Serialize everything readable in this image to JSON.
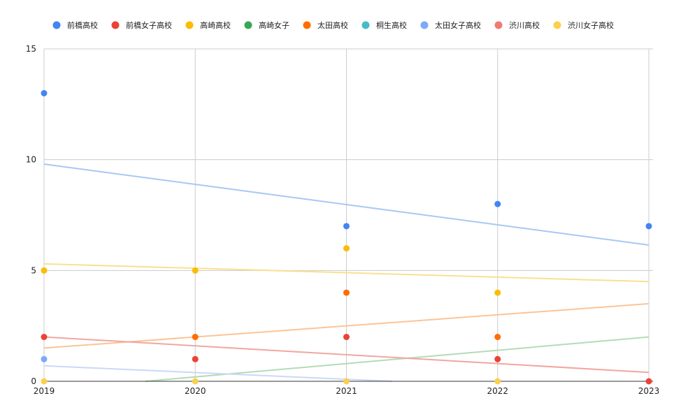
{
  "chart_data": {
    "type": "scatter",
    "title": "",
    "xlabel": "",
    "ylabel": "",
    "x": [
      2019,
      2020,
      2021,
      2022,
      2023
    ],
    "xlim": [
      2019,
      2023
    ],
    "ylim": [
      0,
      15
    ],
    "y_ticks": [
      "0",
      "5",
      "10",
      "15"
    ],
    "x_ticks": [
      "2019",
      "2020",
      "2021",
      "2022",
      "2023"
    ],
    "grid": true,
    "legend_position": "top",
    "trendlines": true,
    "series": [
      {
        "name": "前橋高校",
        "color": "#4285f4",
        "values": [
          13,
          null,
          7,
          8,
          7
        ]
      },
      {
        "name": "前橋女子高校",
        "color": "#ea4335",
        "values": [
          2,
          1,
          2,
          1,
          0
        ]
      },
      {
        "name": "高崎高校",
        "color": "#fbbc04",
        "values": [
          5,
          5,
          6,
          4,
          null
        ]
      },
      {
        "name": "高崎女子",
        "color": "#34a853",
        "values": [
          null,
          null,
          null,
          null,
          null
        ]
      },
      {
        "name": "太田高校",
        "color": "#ff6d01",
        "values": [
          null,
          2,
          4,
          2,
          null
        ]
      },
      {
        "name": "桐生高校",
        "color": "#46bdc6",
        "values": [
          null,
          null,
          null,
          null,
          null
        ]
      },
      {
        "name": "太田女子高校",
        "color": "#7baaf7",
        "values": [
          1,
          null,
          null,
          null,
          null
        ]
      },
      {
        "name": "渋川高校",
        "color": "#f07b72",
        "values": [
          null,
          null,
          null,
          null,
          null
        ]
      },
      {
        "name": "渋川女子高校",
        "color": "#fcd04f",
        "values": [
          0,
          0,
          0,
          0,
          null
        ]
      }
    ],
    "trend_lines": [
      {
        "color": "#a8c7f5",
        "from": [
          2019,
          9.8
        ],
        "to": [
          2023,
          6.15
        ]
      },
      {
        "color": "#f9e08f",
        "from": [
          2019,
          5.3
        ],
        "to": [
          2023,
          4.5
        ]
      },
      {
        "color": "#fbc497",
        "from": [
          2019,
          1.5
        ],
        "to": [
          2023,
          3.5
        ]
      },
      {
        "color": "#b3dcb6",
        "from": [
          2019.67,
          0
        ],
        "to": [
          2023,
          2
        ]
      },
      {
        "color": "#f2a6a0",
        "from": [
          2019,
          2
        ],
        "to": [
          2023,
          0.4
        ]
      },
      {
        "color": "#c9d9f7",
        "from": [
          2019,
          0.7
        ],
        "to": [
          2021.3,
          0
        ]
      }
    ]
  }
}
